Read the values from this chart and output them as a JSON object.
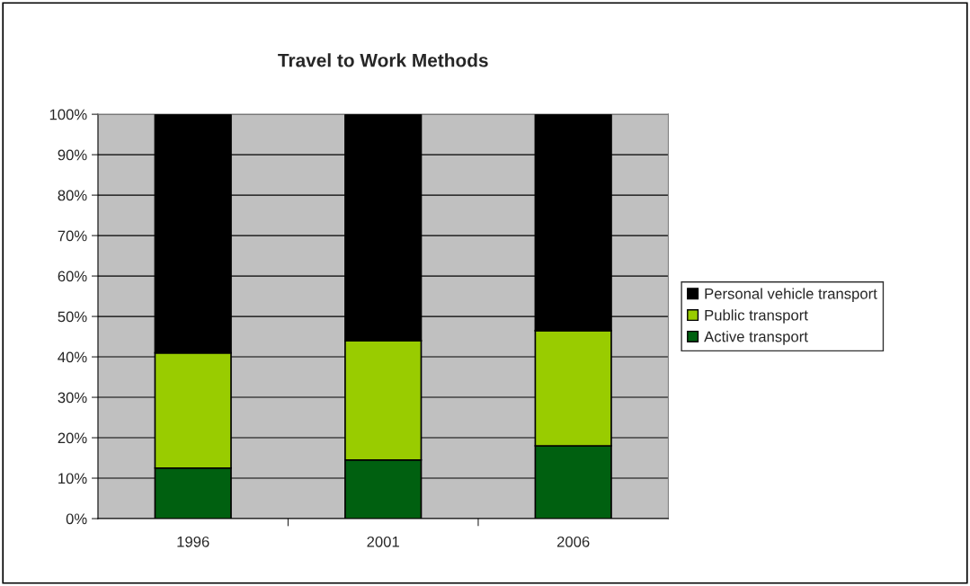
{
  "chart_data": {
    "type": "bar",
    "title": "Travel to Work Methods",
    "categories": [
      "1996",
      "2001",
      "2006"
    ],
    "series": [
      {
        "name": "Active transport",
        "color": "#006010",
        "values": [
          12.5,
          14.5,
          18.0
        ]
      },
      {
        "name": "Public transport",
        "color": "#99cc00",
        "values": [
          28.5,
          29.5,
          28.5
        ]
      },
      {
        "name": "Personal vehicle transport",
        "color": "#000000",
        "values": [
          59.0,
          56.0,
          53.5
        ]
      }
    ],
    "stacked": true,
    "ylim": [
      0,
      100
    ],
    "yticks": [
      {
        "value": 0,
        "label": "0%"
      },
      {
        "value": 10,
        "label": "10%"
      },
      {
        "value": 20,
        "label": "20%"
      },
      {
        "value": 30,
        "label": "30%"
      },
      {
        "value": 40,
        "label": "40%"
      },
      {
        "value": 50,
        "label": "50%"
      },
      {
        "value": 60,
        "label": "60%"
      },
      {
        "value": 70,
        "label": "70%"
      },
      {
        "value": 80,
        "label": "80%"
      },
      {
        "value": 90,
        "label": "90%"
      },
      {
        "value": 100,
        "label": "100%"
      }
    ],
    "grid": "y",
    "legend": "right"
  }
}
